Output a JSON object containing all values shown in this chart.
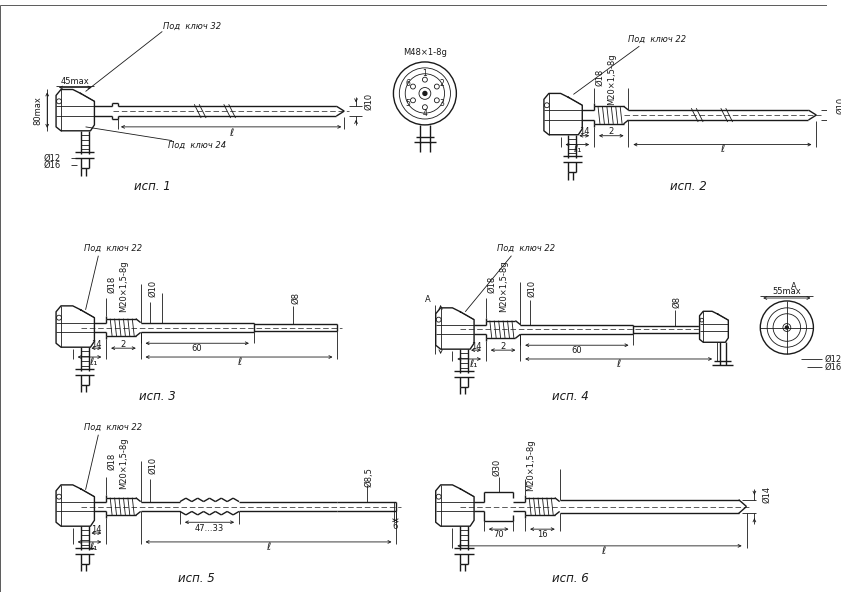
{
  "bg_color": "#ffffff",
  "lc": "#1a1a1a",
  "isp_labels": [
    "исп. 1",
    "исп. 2",
    "исп. 3",
    "исп. 4",
    "исп. 5",
    "исп. 6"
  ],
  "under_key": "Под  ключ",
  "m20_label": "M20×1,5-8g",
  "m48_label": "M48×1-8g",
  "phi10": "Ø10",
  "phi12": "Ø12",
  "phi14": "Ø14",
  "phi16": "Ø16",
  "phi18": "Ø18",
  "phi8": "Ø8",
  "phi85": "Ø8,5",
  "phi30": "Ø30",
  "dim_45max": "45max",
  "dim_80max": "80max",
  "dim_55max": "55max",
  "dim_14": "14",
  "dim_2": "2",
  "dim_60": "60",
  "dim_70": "70",
  "dim_16": "16",
  "dim_6": "6",
  "dim_47_33": "47...33",
  "under32": "32",
  "under22": "22",
  "under24": "24",
  "ell": "ℓ",
  "ell1": "ℓ₁",
  "A_label": "A"
}
